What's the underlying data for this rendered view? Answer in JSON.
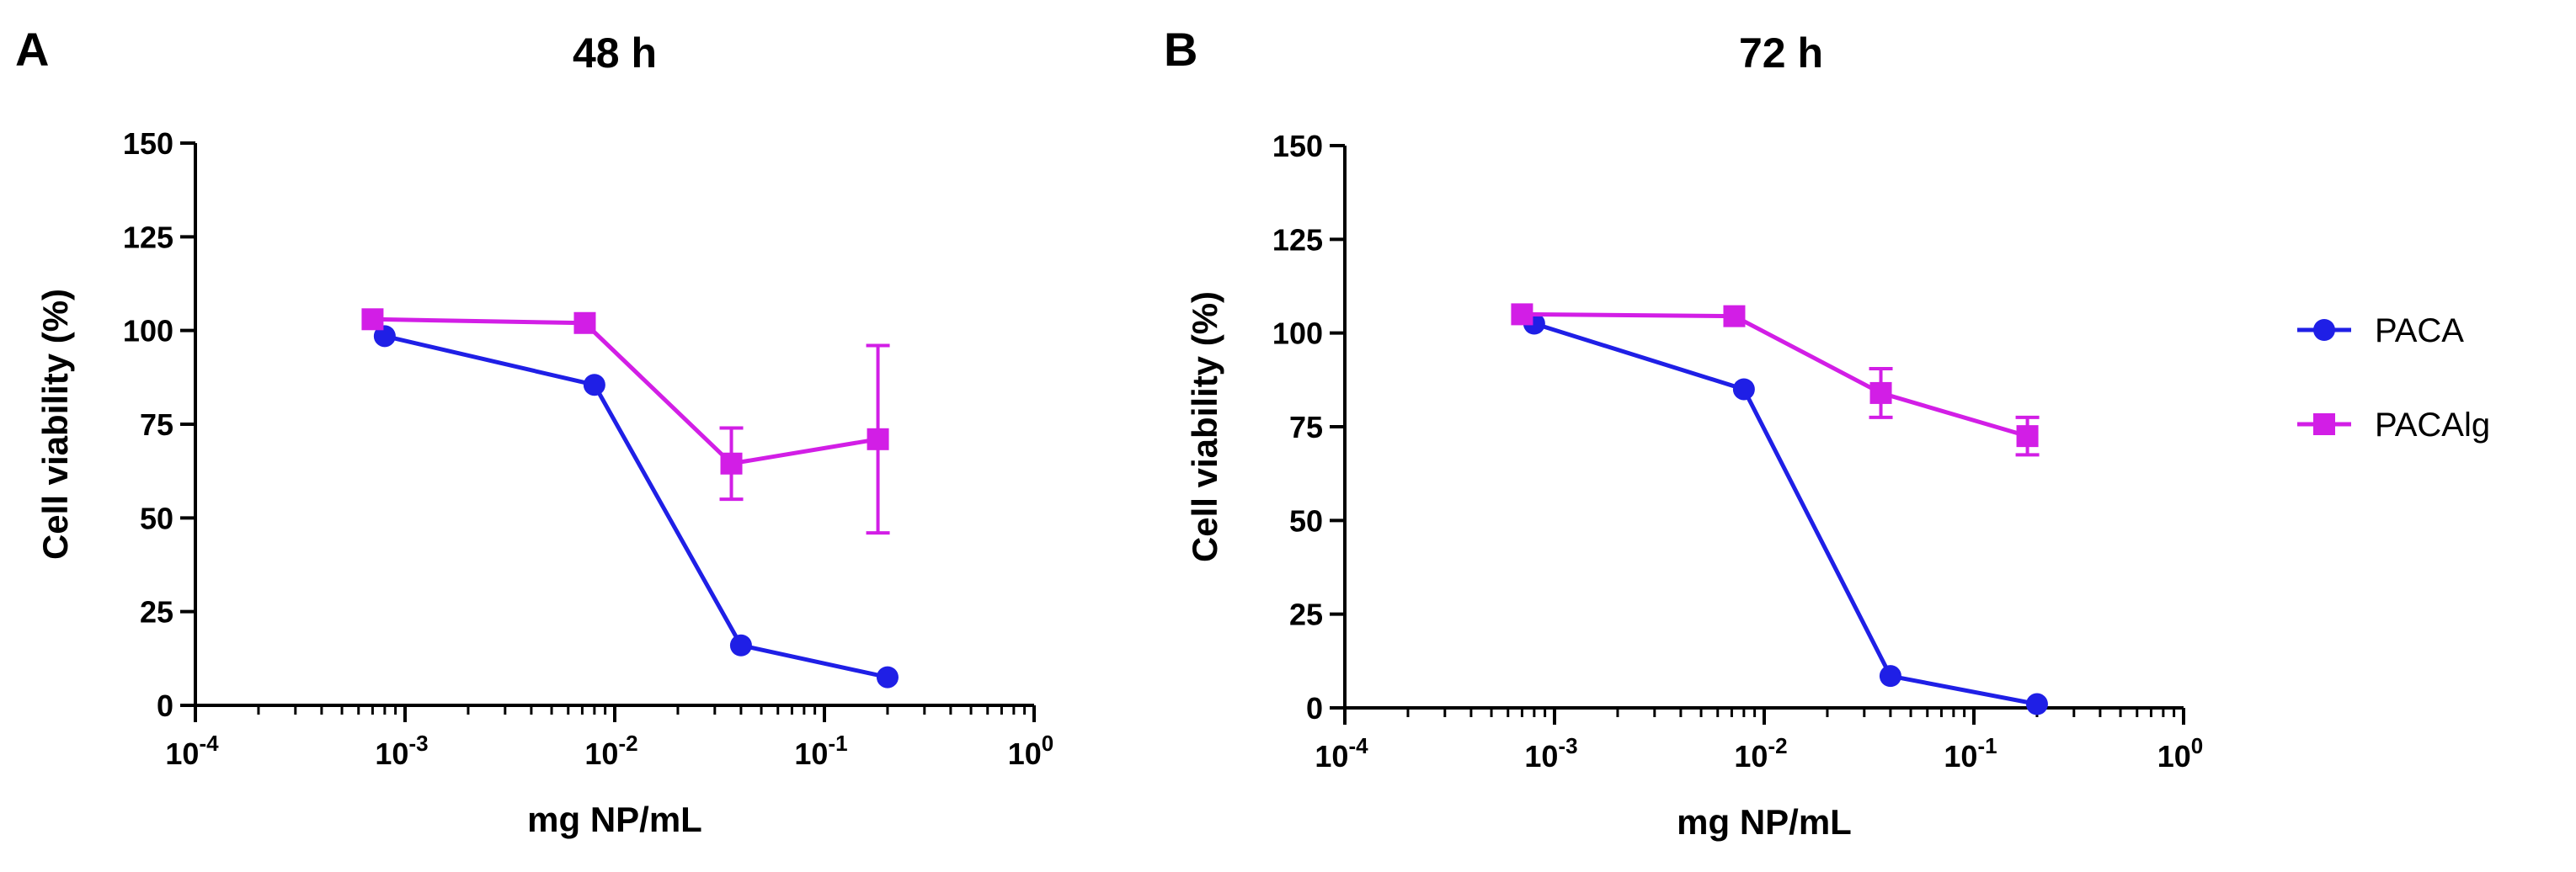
{
  "figure": {
    "legend": [
      {
        "name": "PACA",
        "color": "#1f1fe6",
        "marker": "circle"
      },
      {
        "name": "PACAlg",
        "color": "#d21ee6",
        "marker": "square"
      }
    ]
  },
  "chart_data": [
    {
      "type": "line",
      "panel_label": "A",
      "title": "48 h",
      "xlabel": "mg NP/mL",
      "ylabel": "Cell viability (%)",
      "xscale": "log",
      "xlim_exponent": [
        -4,
        0
      ],
      "x_tick_base": "10",
      "x_tick_exponents": [
        "-4",
        "-3",
        "-2",
        "-1",
        "0"
      ],
      "ylim": [
        0,
        150
      ],
      "y_ticks": [
        "0",
        "25",
        "50",
        "75",
        "100",
        "125",
        "150"
      ],
      "series": [
        {
          "name": "PACA",
          "color": "#1f1fe6",
          "marker": "circle",
          "x": [
            0.0008,
            0.008,
            0.04,
            0.2
          ],
          "y": [
            98.5,
            85.5,
            16,
            7.5
          ],
          "err": [
            0,
            0,
            0,
            0
          ]
        },
        {
          "name": "PACAlg",
          "color": "#d21ee6",
          "marker": "square",
          "x": [
            0.0007,
            0.0072,
            0.036,
            0.18
          ],
          "y": [
            103,
            102,
            64.5,
            71
          ],
          "err": [
            0,
            0,
            9.5,
            25
          ]
        }
      ]
    },
    {
      "type": "line",
      "panel_label": "B",
      "title": "72 h",
      "xlabel": "mg NP/mL",
      "ylabel": "Cell viability (%)",
      "xscale": "log",
      "xlim_exponent": [
        -4,
        0
      ],
      "x_tick_base": "10",
      "x_tick_exponents": [
        "-4",
        "-3",
        "-2",
        "-1",
        "0"
      ],
      "ylim": [
        0,
        150
      ],
      "y_ticks": [
        "0",
        "25",
        "50",
        "75",
        "100",
        "125",
        "150"
      ],
      "series": [
        {
          "name": "PACA",
          "color": "#1f1fe6",
          "marker": "circle",
          "x": [
            0.0008,
            0.008,
            0.04,
            0.2
          ],
          "y": [
            102.5,
            85,
            8.5,
            1
          ],
          "err": [
            0,
            0,
            0,
            0
          ]
        },
        {
          "name": "PACAlg",
          "color": "#d21ee6",
          "marker": "square",
          "x": [
            0.0007,
            0.0072,
            0.036,
            0.18
          ],
          "y": [
            105,
            104.5,
            84,
            72.5
          ],
          "err": [
            0,
            0,
            6.5,
            5
          ]
        }
      ]
    }
  ]
}
